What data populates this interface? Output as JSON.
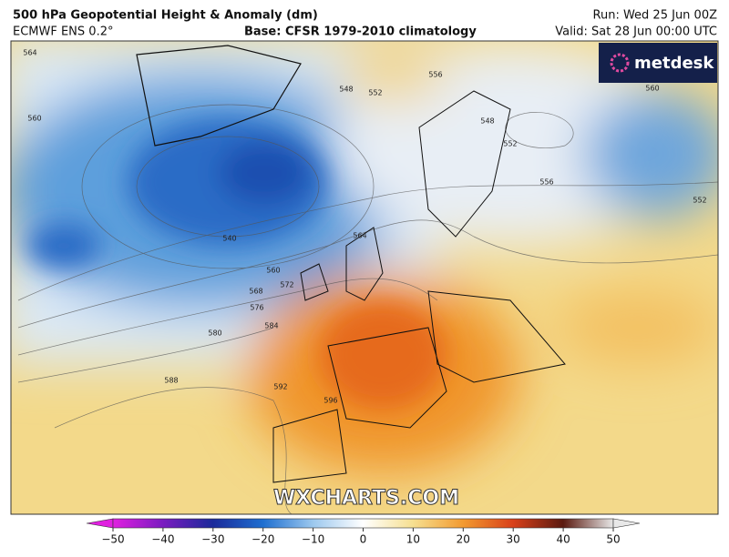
{
  "header": {
    "title": "500 hPa Geopotential Height & Anomaly (dm)",
    "model": "ECMWF ENS 0.2°",
    "base": "Base: CFSR 1979-2010 climatology",
    "run": "Run: Wed 25 Jun 00Z",
    "valid": "Valid: Sat 28 Jun 00:00 UTC"
  },
  "logo": "metdesk",
  "watermark": "WXCHARTS.COM",
  "contour_labels": [
    564,
    560,
    548,
    552,
    556,
    548,
    552,
    556,
    560,
    552,
    540,
    560,
    568,
    572,
    576,
    580,
    584,
    588,
    592,
    596,
    564
  ],
  "colorbar": {
    "ticks": [
      {
        "value": -50,
        "label": "−50"
      },
      {
        "value": -40,
        "label": "−40"
      },
      {
        "value": -30,
        "label": "−30"
      },
      {
        "value": -20,
        "label": "−20"
      },
      {
        "value": -10,
        "label": "−10"
      },
      0,
      10,
      20,
      30,
      40,
      50
    ]
  }
}
